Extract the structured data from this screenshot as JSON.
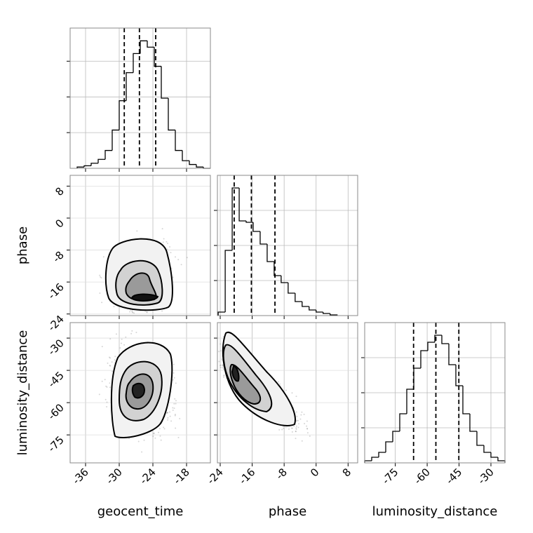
{
  "chart_data": {
    "type": "corner",
    "parameters": [
      "geocent_time",
      "phase",
      "luminosity_distance"
    ],
    "axes": [
      {
        "xlim": [
          -38.75,
          -13.75
        ],
        "xticks": [
          -36,
          -30,
          -24,
          -18
        ]
      },
      {
        "xlim": [
          -24.7,
          10.4
        ],
        "xticks": [
          -24,
          -16,
          -8,
          0,
          8
        ],
        "ylim": [
          -24.4,
          10.7
        ],
        "yticks": [
          8,
          0,
          -8,
          -16,
          -24
        ]
      },
      {
        "xlim": [
          -89.4,
          -23.4
        ],
        "xticks": [
          -75,
          -60,
          -45,
          -30
        ],
        "ylim": [
          -88,
          -22.8
        ],
        "yticks": [
          -30,
          -45,
          -60,
          -75
        ]
      }
    ],
    "histograms": [
      {
        "bins": [
          -37.5,
          -36.25,
          -35,
          -33.75,
          -32.5,
          -31.25,
          -30,
          -28.75,
          -27.5,
          -26.25,
          -25,
          -23.75,
          -22.5,
          -21.25,
          -20,
          -18.75,
          -17.5,
          -16.25,
          -15,
          -13.75
        ],
        "counts": [
          1,
          2,
          4,
          7,
          14,
          30,
          53,
          75,
          90,
          100,
          95,
          80,
          55,
          30,
          14,
          6,
          3,
          1,
          0
        ],
        "quantiles": [
          -29.1,
          -26.4,
          -23.5
        ],
        "ylim": [
          0,
          110
        ],
        "yticks": [
          28,
          56,
          84
        ]
      },
      {
        "bins": [
          -24.5,
          -22.75,
          -21,
          -19.25,
          -17.5,
          -15.75,
          -14,
          -12.25,
          -10.5,
          -8.75,
          -7,
          -5.25,
          -3.5,
          -1.75,
          0,
          1.75,
          3.5,
          5.25
        ],
        "counts": [
          5,
          93,
          182,
          135,
          133,
          120,
          102,
          77,
          57,
          47,
          32,
          20,
          13,
          8,
          5,
          3,
          1
        ],
        "quantiles": [
          -20.5,
          -16.2,
          -10.3
        ],
        "ylim": [
          0,
          200
        ],
        "yticks": [
          50,
          100,
          150
        ]
      },
      {
        "bins": [
          -89.4,
          -86.1,
          -82.8,
          -79.5,
          -76.2,
          -72.9,
          -69.6,
          -66.3,
          -63,
          -59.7,
          -56.4,
          -53.1,
          -49.8,
          -46.5,
          -43.2,
          -39.9,
          -36.6,
          -33.3,
          -30,
          -26.7,
          -23.4
        ],
        "counts": [
          3,
          8,
          15,
          30,
          45,
          70,
          105,
          135,
          160,
          172,
          182,
          170,
          140,
          110,
          70,
          45,
          25,
          15,
          8,
          3
        ],
        "quantiles": [
          -66.4,
          -55.9,
          -45.1
        ],
        "ylim": [
          0,
          200
        ],
        "yticks": [
          50,
          100,
          150
        ]
      }
    ],
    "grid": true
  }
}
